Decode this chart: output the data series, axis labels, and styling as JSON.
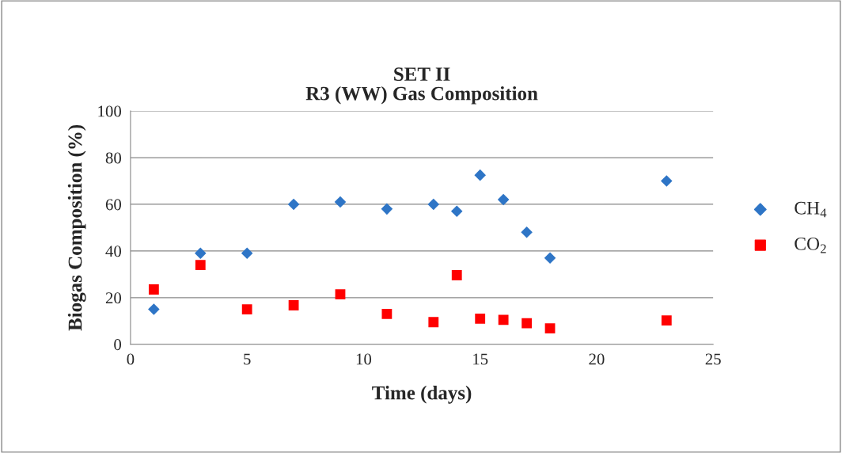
{
  "chart_data": {
    "type": "scatter",
    "title": "SET II\nR3 (WW) Gas Composition",
    "xlabel": "Time (days)",
    "ylabel": "Biogas Composition (%)",
    "series": [
      {
        "name": "CH$_{4}$",
        "color": "#2e75c6",
        "marker": "diamond",
        "x": [
          1,
          3,
          5,
          7,
          9,
          11,
          13,
          14,
          15,
          16,
          17,
          18,
          23
        ],
        "values": [
          15,
          39,
          39,
          60,
          61,
          58,
          60,
          57,
          72.5,
          62,
          48,
          37,
          70
        ]
      },
      {
        "name": "CO$_{2}$",
        "color": "#ff0000",
        "marker": "square",
        "x": [
          1,
          3,
          5,
          7,
          9,
          11,
          13,
          14,
          15,
          16,
          17,
          18,
          23
        ],
        "values": [
          23.5,
          34,
          15,
          16.7,
          21.4,
          13,
          9.5,
          29.6,
          11,
          10.5,
          9,
          6.8,
          10.2
        ]
      }
    ],
    "xlim": [
      0,
      25
    ],
    "xticks": [
      0,
      5,
      10,
      15,
      20,
      25
    ],
    "ylim": [
      0,
      100
    ],
    "yticks": [
      0,
      20,
      40,
      60,
      80,
      100
    ],
    "grid": "y",
    "legend": "right"
  }
}
